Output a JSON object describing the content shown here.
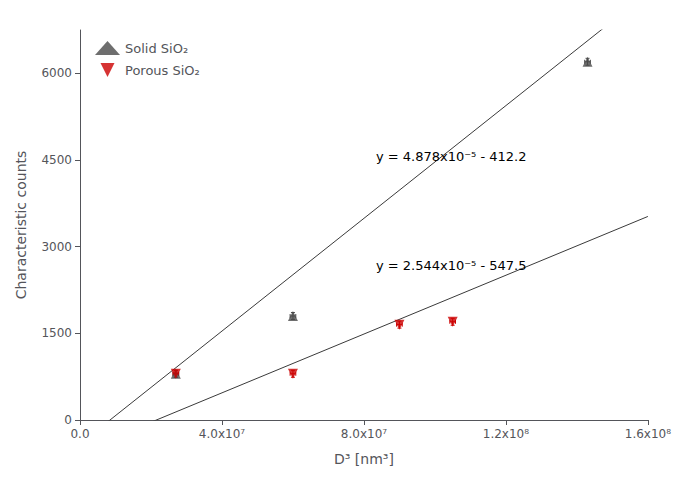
{
  "chart_data": {
    "type": "scatter",
    "xlabel": "D³ [nm³]",
    "ylabel": "Characteristic counts",
    "xlim": [
      0,
      160000000.0
    ],
    "ylim": [
      0,
      6750
    ],
    "xticks": [
      {
        "value": 0,
        "label": "0.0"
      },
      {
        "value": 40000000,
        "label": "4.0x10⁷"
      },
      {
        "value": 80000000,
        "label": "8.0x10⁷"
      },
      {
        "value": 120000000,
        "label": "1.2x10⁸"
      },
      {
        "value": 160000000,
        "label": "1.6x10⁸"
      }
    ],
    "yticks": [
      0,
      1500,
      3000,
      4500,
      6000
    ],
    "grid": false,
    "legend": "upper left",
    "series": [
      {
        "name": "Solid SiO₂",
        "type": "scatter",
        "marker": "triangle-up",
        "color": "#4a4a4a",
        "x": [
          27000000.0,
          60000000.0,
          143000000.0
        ],
        "values": [
          800,
          1800,
          6200
        ],
        "xerr": [
          800000.0,
          800000.0,
          800000.0
        ],
        "yerr": [
          60,
          60,
          60
        ]
      },
      {
        "name": "Porous SiO₂",
        "type": "scatter",
        "marker": "triangle-down",
        "color": "#cc0000",
        "x": [
          27000000.0,
          60000000.0,
          90000000.0,
          105000000.0
        ],
        "values": [
          800,
          800,
          1650,
          1700
        ],
        "xerr": [
          800000.0,
          800000.0,
          800000.0,
          800000.0
        ],
        "yerr": [
          60,
          60,
          60,
          60
        ]
      },
      {
        "type": "line",
        "color": "#3a3a3a",
        "slope": 4.878e-05,
        "intercept": -412.2
      },
      {
        "type": "line",
        "color": "#3a3a3a",
        "slope": 2.544e-05,
        "intercept": -547.5
      }
    ],
    "annotations": [
      {
        "text": "y = 4.878x10⁻⁵ - 412.2"
      },
      {
        "text": "y = 2.544x10⁻⁵ - 547.5"
      }
    ]
  }
}
